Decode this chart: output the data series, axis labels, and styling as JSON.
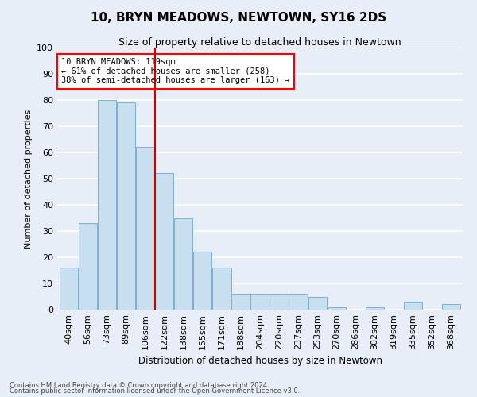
{
  "title": "10, BRYN MEADOWS, NEWTOWN, SY16 2DS",
  "subtitle": "Size of property relative to detached houses in Newtown",
  "xlabel": "Distribution of detached houses by size in Newtown",
  "ylabel": "Number of detached properties",
  "bin_labels": [
    "40sqm",
    "56sqm",
    "73sqm",
    "89sqm",
    "106sqm",
    "122sqm",
    "138sqm",
    "155sqm",
    "171sqm",
    "188sqm",
    "204sqm",
    "220sqm",
    "237sqm",
    "253sqm",
    "270sqm",
    "286sqm",
    "302sqm",
    "319sqm",
    "335sqm",
    "352sqm",
    "368sqm"
  ],
  "bar_heights": [
    16,
    33,
    80,
    79,
    62,
    52,
    35,
    22,
    16,
    6,
    6,
    6,
    6,
    5,
    1,
    0,
    1,
    0,
    3,
    0,
    2
  ],
  "bar_color": "#c8dff0",
  "bar_edge_color": "#7bafd4",
  "vline_index": 4.5,
  "property_line_label": "10 BRYN MEADOWS: 119sqm",
  "annotation_line1": "← 61% of detached houses are smaller (258)",
  "annotation_line2": "38% of semi-detached houses are larger (163) →",
  "vline_color": "#cc0000",
  "ylim": [
    0,
    100
  ],
  "yticks": [
    0,
    10,
    20,
    30,
    40,
    50,
    60,
    70,
    80,
    90,
    100
  ],
  "footnote1": "Contains HM Land Registry data © Crown copyright and database right 2024.",
  "footnote2": "Contains public sector information licensed under the Open Government Licence v3.0.",
  "background_color": "#e8eef8",
  "plot_background": "#e8eef8"
}
